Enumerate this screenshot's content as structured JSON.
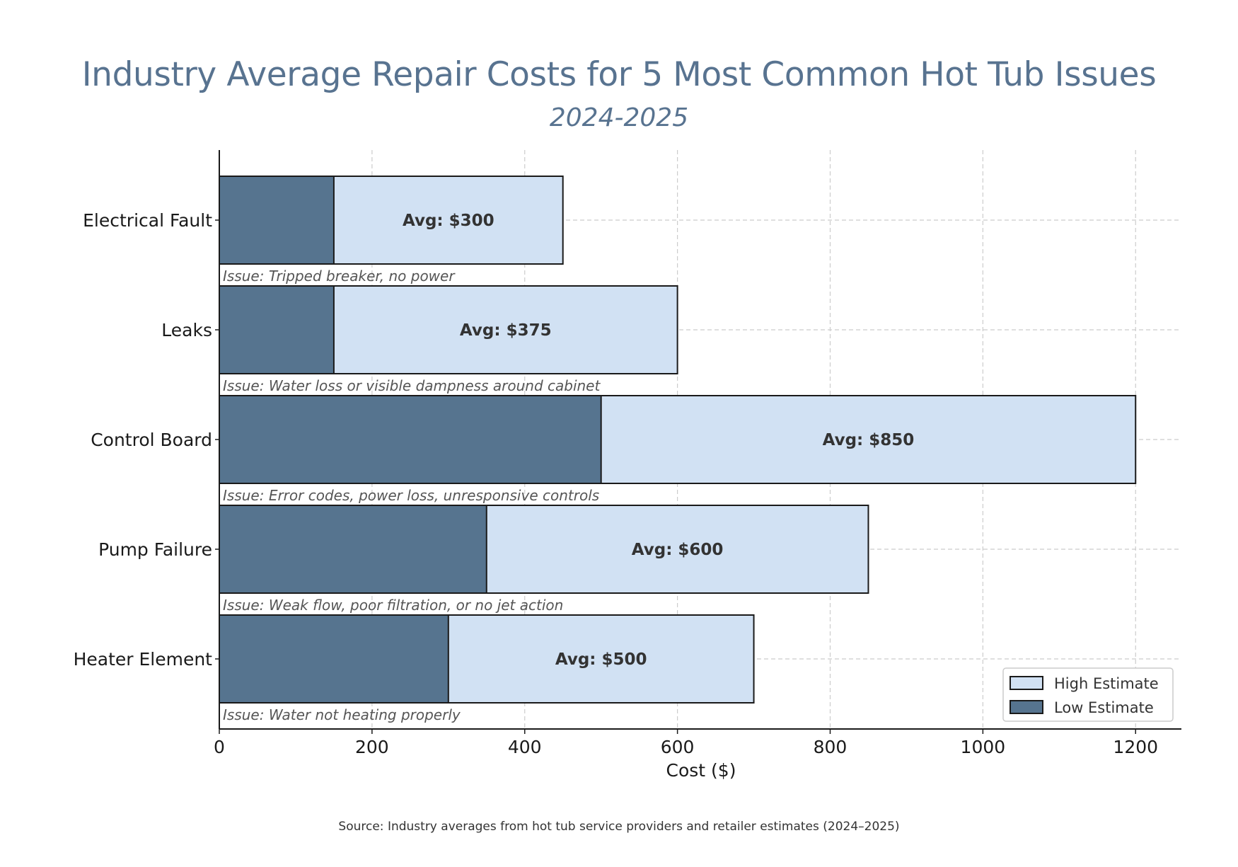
{
  "colors": {
    "title": "#587390",
    "low_bar": "#56748f",
    "high_bar": "#d1e1f3",
    "bar_edge": "#1a1a1a",
    "grid": "#cccccc",
    "annotation": "#555555",
    "avg_label": "#333333"
  },
  "chart_data": {
    "type": "bar",
    "orientation": "horizontal",
    "title": "Industry Average Repair Costs for 5 Most Common Hot Tub Issues",
    "subtitle": "2024-2025",
    "xlabel": "Cost ($)",
    "ylabel": "",
    "xlim": [
      0,
      1260
    ],
    "xticks": [
      0,
      200,
      400,
      600,
      800,
      1000,
      1200
    ],
    "grid": true,
    "legend_position": "bottom-right",
    "categories": [
      "Electrical Fault",
      "Leaks",
      "Control Board",
      "Pump Failure",
      "Heater Element"
    ],
    "series": [
      {
        "name": "High Estimate",
        "values": [
          450,
          600,
          1200,
          850,
          700
        ]
      },
      {
        "name": "Low Estimate",
        "values": [
          150,
          150,
          500,
          350,
          300
        ]
      }
    ],
    "avg_labels": [
      "Avg: $300",
      "Avg: $375",
      "Avg: $850",
      "Avg: $600",
      "Avg: $500"
    ],
    "avg_values": [
      300,
      375,
      850,
      600,
      500
    ],
    "issue_prefix": "Issue",
    "issues": [
      "Tripped breaker, no power",
      "Water loss or visible dampness around cabinet",
      "Error codes, power loss, unresponsive controls",
      "Weak flow, poor filtration, or no jet action",
      "Water not heating properly"
    ],
    "source": "Source: Industry averages from hot tub service providers and retailer estimates (2024–2025)"
  }
}
